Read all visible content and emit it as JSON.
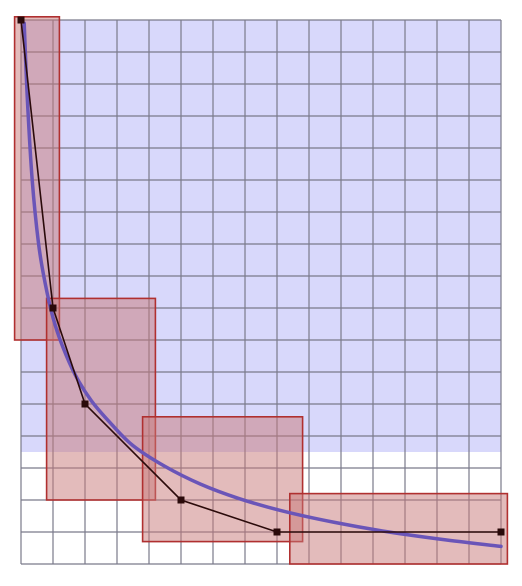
{
  "diagram": {
    "grid": {
      "x_min": 0,
      "x_max": 15,
      "y_min": 0,
      "y_max": 17,
      "grid_color": "#7a7a8a",
      "background_color": "#ffffff"
    },
    "shaded_region": {
      "description_color": "#d8d8fb",
      "y_bottom": 3.5
    },
    "curve": {
      "function": "reciprocal",
      "color": "#6a55b8",
      "points": [
        [
          0.1,
          16.9
        ],
        [
          0.2,
          14.5
        ],
        [
          0.35,
          12.0
        ],
        [
          0.55,
          10.0
        ],
        [
          0.75,
          8.8
        ],
        [
          1.0,
          7.7
        ],
        [
          1.3,
          6.8
        ],
        [
          1.7,
          5.9
        ],
        [
          2.2,
          5.1
        ],
        [
          2.8,
          4.4
        ],
        [
          3.5,
          3.7
        ],
        [
          4.5,
          3.05
        ],
        [
          5.6,
          2.5
        ],
        [
          6.8,
          2.05
        ],
        [
          8.2,
          1.65
        ],
        [
          9.8,
          1.3
        ],
        [
          11.5,
          1.0
        ],
        [
          13.3,
          0.75
        ],
        [
          15.0,
          0.55
        ]
      ]
    },
    "polyline": {
      "color": "#2a0a0a",
      "points": [
        [
          0,
          17
        ],
        [
          1,
          8
        ],
        [
          2,
          5
        ],
        [
          5,
          2
        ],
        [
          8,
          1
        ],
        [
          15,
          1
        ]
      ]
    },
    "rectangles": {
      "fill": "#c87878",
      "stroke": "#b03030",
      "items": [
        {
          "x0": -0.2,
          "x1": 1.2,
          "y0": 7.0,
          "y1": 17.1
        },
        {
          "x0": 0.8,
          "x1": 4.2,
          "y0": 2.0,
          "y1": 8.3
        },
        {
          "x0": 3.8,
          "x1": 8.8,
          "y0": 0.7,
          "y1": 4.6
        },
        {
          "x0": 8.4,
          "x1": 15.2,
          "y0": 0.0,
          "y1": 2.2
        }
      ]
    }
  }
}
